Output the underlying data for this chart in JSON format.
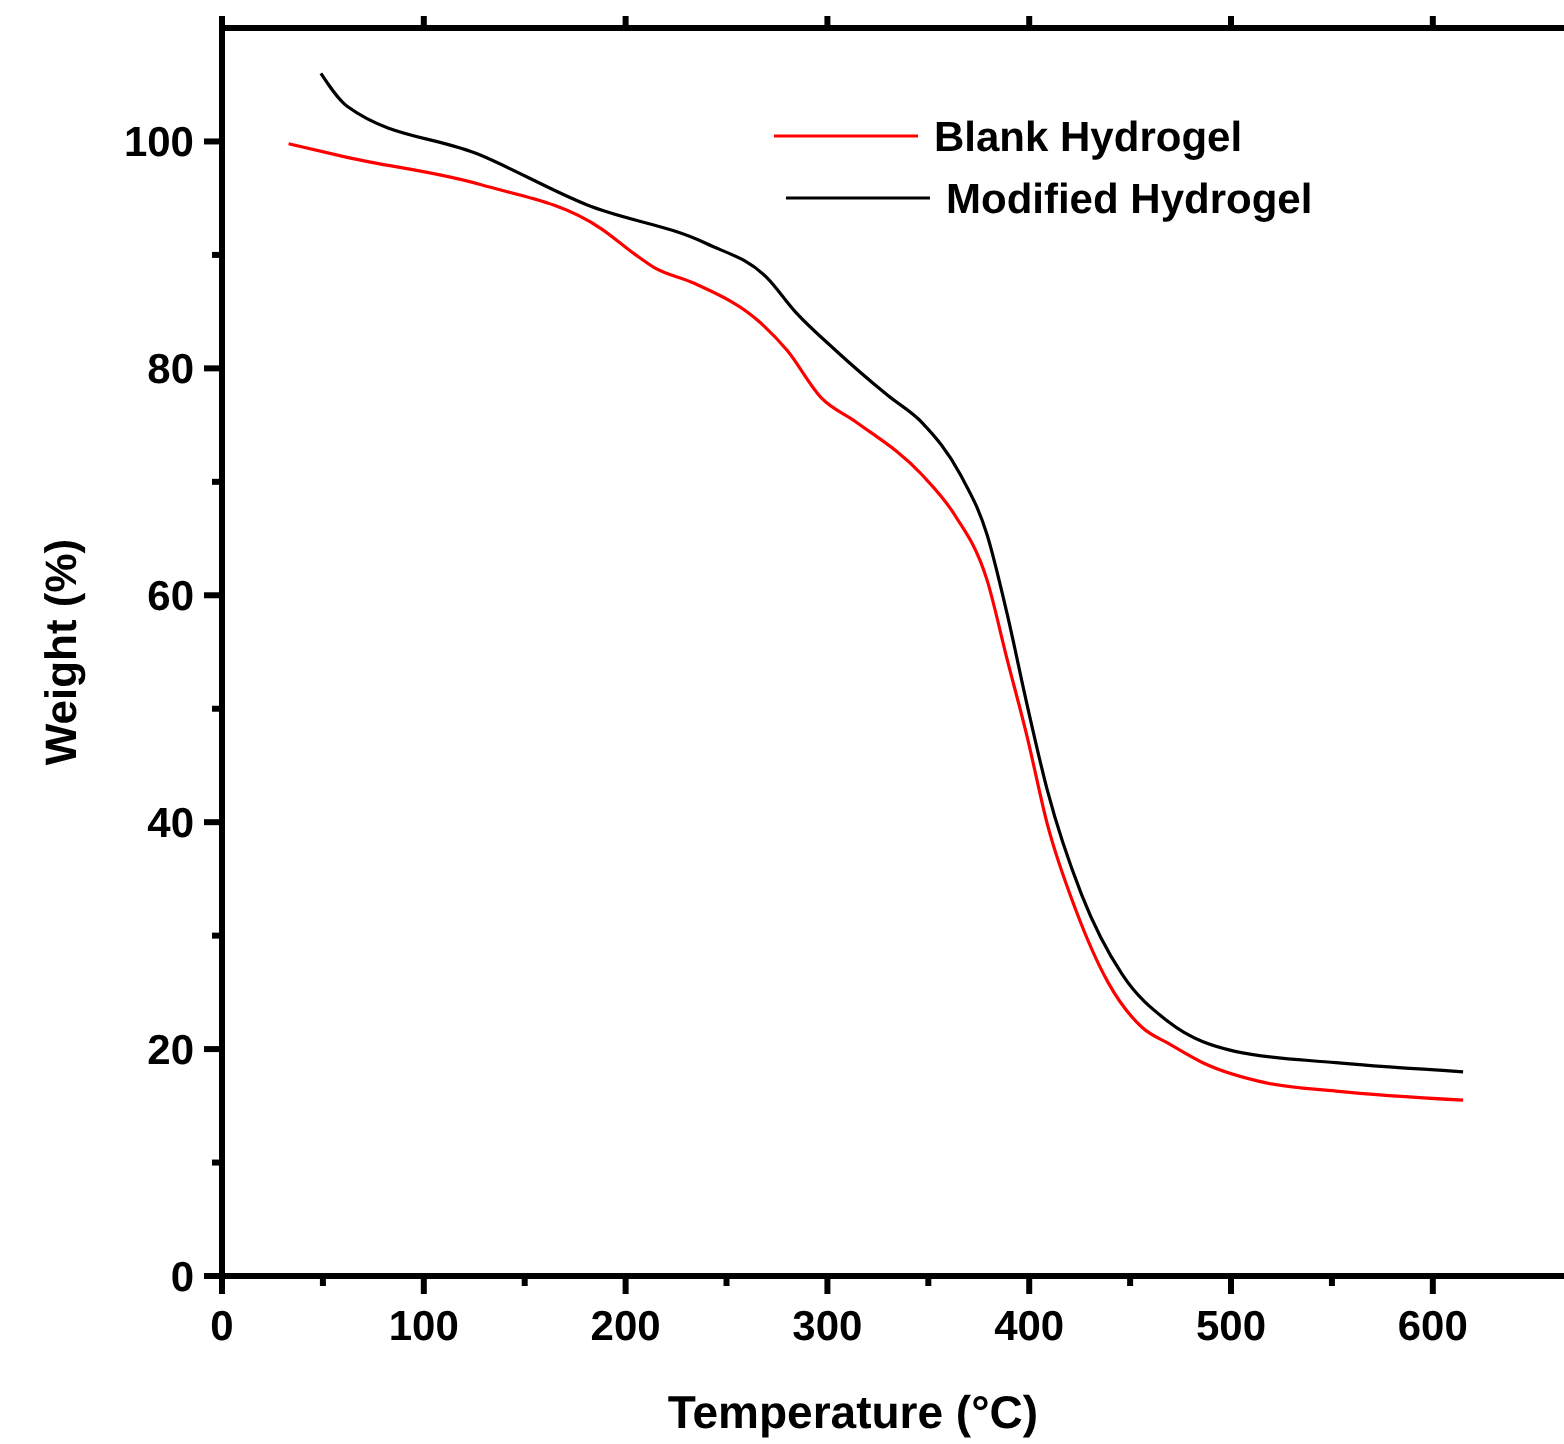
{
  "chart_data": {
    "type": "line",
    "xlabel": "Temperature (°C)",
    "ylabel": "Weight (%)",
    "xlim": [
      0,
      665
    ],
    "ylim": [
      0,
      110
    ],
    "xticks": [
      0,
      100,
      200,
      300,
      400,
      500,
      600
    ],
    "yticks": [
      0,
      20,
      40,
      60,
      80,
      100
    ],
    "legend": "top right",
    "grid": false,
    "line_style": "solid",
    "marker": "none",
    "series": [
      {
        "name": "Blank Hydrogel",
        "color": "#ff0000",
        "x": [
          33,
          62,
          128,
          188,
          205,
          214,
          234,
          267,
          280,
          297,
          314,
          347,
          363,
          379,
          389,
          399,
          409,
          423,
          439,
          456,
          469,
          486,
          518,
          552,
          615
        ],
        "values": [
          99.8,
          98.6,
          96.2,
          92.3,
          90,
          88.9,
          87.5,
          84,
          81.6,
          77.4,
          75.3,
          70.6,
          67.1,
          61.4,
          54.4,
          47.5,
          39.8,
          32.3,
          25.9,
          21.9,
          20.5,
          18.8,
          17,
          16.3,
          15.5
        ]
      },
      {
        "name": "Modified Hydrogel",
        "color": "#000000",
        "x": [
          49,
          62,
          128,
          181,
          240,
          270,
          284,
          304,
          330,
          347,
          366,
          379,
          389,
          399,
          409,
          426,
          446,
          469,
          502,
          552,
          615
        ],
        "values": [
          106,
          103.1,
          98.8,
          94.4,
          91,
          88,
          85,
          81.6,
          77.6,
          75.2,
          70.6,
          65.4,
          58.4,
          50.3,
          42.8,
          33.6,
          26.6,
          22.4,
          19.8,
          18.8,
          18
        ]
      }
    ]
  }
}
